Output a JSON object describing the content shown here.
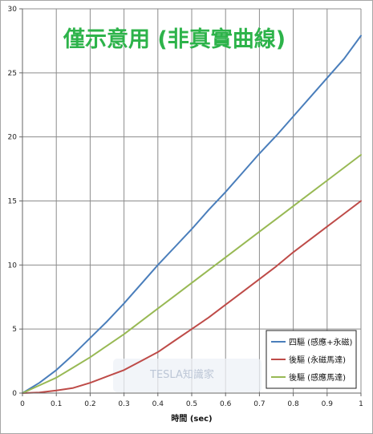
{
  "chart_data": {
    "type": "line",
    "title": "僅示意用 (非真實曲線)",
    "title_color": "#2db34a",
    "xlabel": "時間 (sec)",
    "ylabel": "",
    "xlim": [
      0,
      1
    ],
    "ylim": [
      0,
      30
    ],
    "x_ticks": [
      0,
      0.1,
      0.2,
      0.3,
      0.4,
      0.5,
      0.6,
      0.7,
      0.8,
      0.9,
      1
    ],
    "x_tick_labels": [
      "0",
      "0.1",
      "0.2",
      "0.3",
      "0.4",
      "0.5",
      "0.6",
      "0.7",
      "0.8",
      "0.9",
      "1"
    ],
    "y_ticks": [
      0,
      5,
      10,
      15,
      20,
      25,
      30
    ],
    "y_tick_labels": [
      "0",
      "5",
      "10",
      "15",
      "20",
      "25",
      "30"
    ],
    "grid": true,
    "legend_position": "bottom-right",
    "x": [
      0,
      0.05,
      0.1,
      0.15,
      0.2,
      0.25,
      0.3,
      0.35,
      0.4,
      0.45,
      0.5,
      0.55,
      0.6,
      0.65,
      0.7,
      0.75,
      0.8,
      0.85,
      0.9,
      0.95,
      1
    ],
    "series": [
      {
        "name": "四驅 (感應+永磁)",
        "color": "#4a7ebb",
        "values": [
          0,
          0.8,
          1.8,
          3.0,
          4.3,
          5.6,
          7.0,
          8.5,
          10.0,
          11.4,
          12.8,
          14.3,
          15.7,
          17.2,
          18.7,
          20.1,
          21.6,
          23.1,
          24.6,
          26.1,
          27.9
        ]
      },
      {
        "name": "後驅 (永磁馬達)",
        "color": "#be4b48",
        "values": [
          0,
          0.05,
          0.2,
          0.4,
          0.8,
          1.3,
          1.8,
          2.5,
          3.2,
          4.1,
          5.0,
          5.9,
          6.9,
          7.9,
          8.9,
          9.9,
          11.0,
          12.0,
          13.0,
          14.0,
          15.0
        ]
      },
      {
        "name": "後驅 (感應馬達)",
        "color": "#98b954",
        "values": [
          0,
          0.6,
          1.2,
          2.0,
          2.8,
          3.7,
          4.6,
          5.6,
          6.6,
          7.6,
          8.6,
          9.6,
          10.6,
          11.6,
          12.6,
          13.6,
          14.6,
          15.6,
          16.6,
          17.6,
          18.6
        ]
      }
    ]
  },
  "watermark": {
    "text": "TESLA知識家"
  }
}
